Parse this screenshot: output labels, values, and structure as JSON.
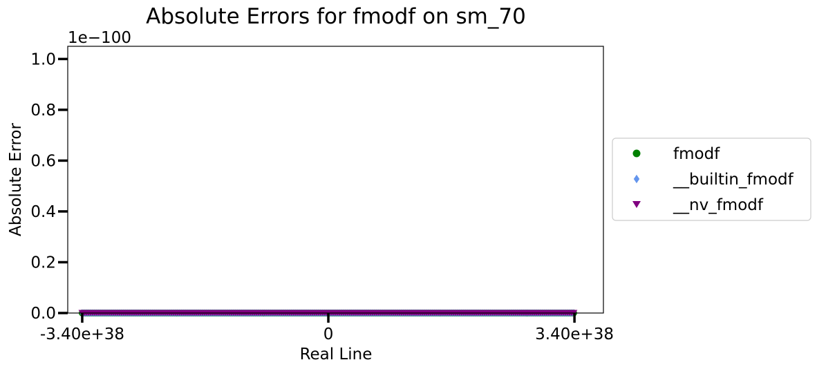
{
  "chart_data": {
    "type": "scatter",
    "title": "Absolute Errors for fmodf on sm_70",
    "xlabel": "Real Line",
    "ylabel": "Absolute Error",
    "y_offset_label": "1e−100",
    "xlim": [
      -3.6e+38,
      3.8e+38
    ],
    "ylim": [
      0,
      1.05
    ],
    "x_ticks": [
      {
        "value": -3.4e+38,
        "label": "-3.40e+38"
      },
      {
        "value": 0,
        "label": "0"
      },
      {
        "value": 3.4e+38,
        "label": "3.40e+38"
      }
    ],
    "y_ticks": [
      {
        "value": 0.0,
        "label": "0.0"
      },
      {
        "value": 0.2,
        "label": "0.2"
      },
      {
        "value": 0.4,
        "label": "0.4"
      },
      {
        "value": 0.6,
        "label": "0.6"
      },
      {
        "value": 0.8,
        "label": "0.8"
      },
      {
        "value": 1.0,
        "label": "1.0"
      }
    ],
    "grid": false,
    "legend_position": "outside-right",
    "series": [
      {
        "name": "fmodf",
        "marker": "circle",
        "color": "#008000",
        "x_range": [
          -3.4e+38,
          3.4e+38
        ],
        "y": 0
      },
      {
        "name": "__builtin_fmodf",
        "marker": "diamond",
        "color": "#6495ed",
        "x_range": [
          -3.4e+38,
          3.4e+38
        ],
        "y": 0
      },
      {
        "name": "__nv_fmodf",
        "marker": "triangle-down",
        "color": "#800080",
        "x_range": [
          -3.4e+38,
          3.4e+38
        ],
        "y": 0
      }
    ]
  }
}
